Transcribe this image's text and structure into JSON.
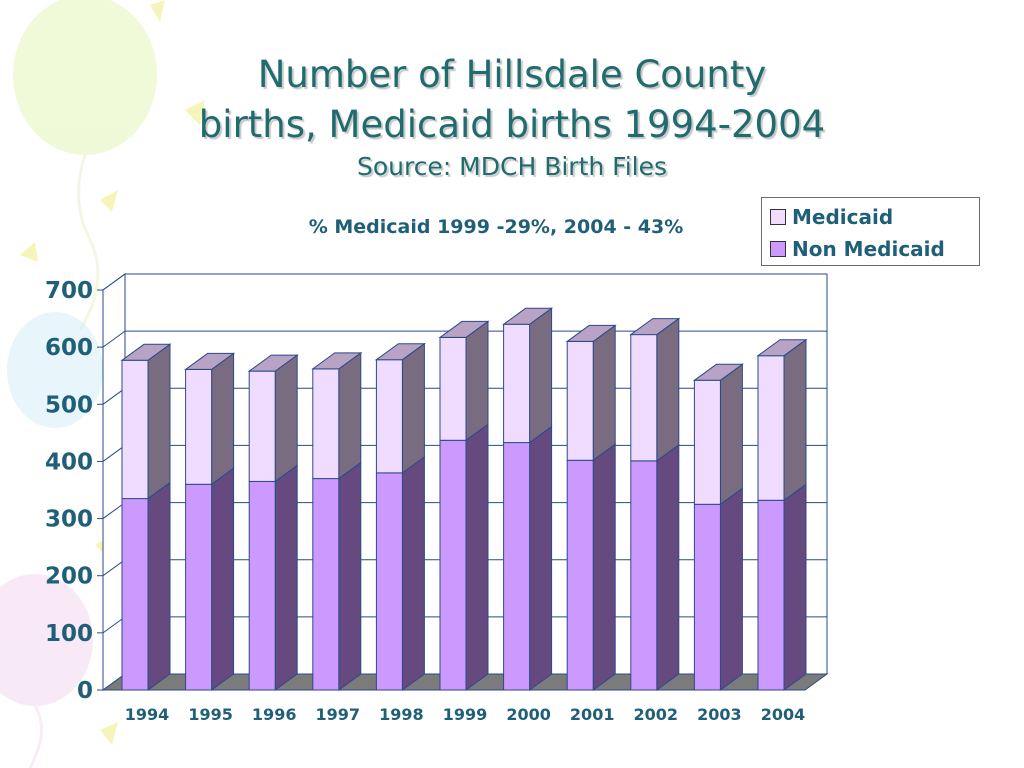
{
  "slide": {
    "title_line1": "Number of Hillsdale County",
    "title_line2": "births, Medicaid births 1994-2004",
    "subtitle": "Source: MDCH Birth Files"
  },
  "chart_data": {
    "type": "bar",
    "stacked": true,
    "three_d": true,
    "annotation": "% Medicaid 1999 -29%, 2004 - 43%",
    "categories": [
      "1994",
      "1995",
      "1996",
      "1997",
      "1998",
      "1999",
      "2000",
      "2001",
      "2002",
      "2003",
      "2004"
    ],
    "series": [
      {
        "name": "Non Medicaid",
        "color": "#cc99ff",
        "values": [
          335,
          360,
          365,
          370,
          380,
          437,
          433,
          402,
          401,
          325,
          332
        ]
      },
      {
        "name": "Medicaid",
        "color": "#f0dcff",
        "values": [
          242,
          201,
          193,
          192,
          198,
          180,
          207,
          208,
          221,
          217,
          253
        ]
      }
    ],
    "ylim": [
      0,
      700
    ],
    "yticks": [
      0,
      100,
      200,
      300,
      400,
      500,
      600,
      700
    ],
    "grid": true,
    "legend_position": "top-right",
    "legend_order": [
      "Medicaid",
      "Non Medicaid"
    ],
    "side_colors": {
      "Non Medicaid": "#66497f",
      "Medicaid": "#7a6c80"
    },
    "text_color": "#1f5f78"
  }
}
